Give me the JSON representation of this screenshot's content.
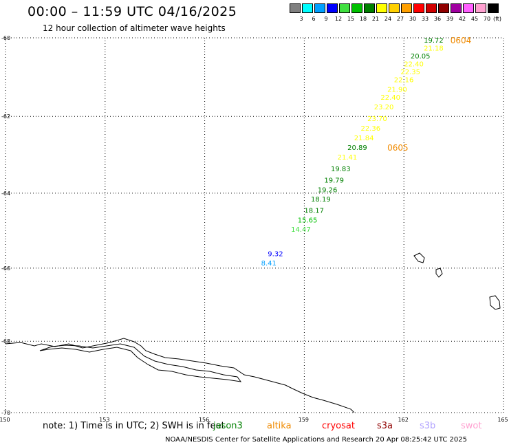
{
  "title": "00:00 – 11:59 UTC 04/16/2025",
  "subtitle": "12 hour collection of altimeter wave heights",
  "legend": {
    "unit": "(ft)",
    "bins": [
      {
        "label": "3",
        "color": "#808080"
      },
      {
        "label": "6",
        "color": "#00ffff"
      },
      {
        "label": "9",
        "color": "#00a0ff"
      },
      {
        "label": "12",
        "color": "#0000ff"
      },
      {
        "label": "15",
        "color": "#40e040"
      },
      {
        "label": "18",
        "color": "#00c000"
      },
      {
        "label": "21",
        "color": "#008000"
      },
      {
        "label": "24",
        "color": "#ffff00"
      },
      {
        "label": "27",
        "color": "#ffd000"
      },
      {
        "label": "30",
        "color": "#ffa000"
      },
      {
        "label": "33",
        "color": "#ff0000"
      },
      {
        "label": "36",
        "color": "#d00000"
      },
      {
        "label": "39",
        "color": "#900000"
      },
      {
        "label": "42",
        "color": "#a000a0"
      },
      {
        "label": "45",
        "color": "#ff60ff"
      },
      {
        "label": "70",
        "color": "#ffa0d0"
      },
      {
        "label": "",
        "color": "#000000"
      }
    ]
  },
  "map": {
    "lon_range": [
      150,
      165
    ],
    "lat_range": [
      -70,
      -60
    ],
    "lon_ticks": [
      {
        "value": 150,
        "label": "150"
      },
      {
        "value": 153,
        "label": "153"
      },
      {
        "value": 156,
        "label": "156"
      },
      {
        "value": 159,
        "label": "159"
      },
      {
        "value": 162,
        "label": "162"
      },
      {
        "value": 165,
        "label": "165"
      }
    ],
    "lat_ticks": [
      {
        "value": -60,
        "label": "-60"
      },
      {
        "value": -62,
        "label": "-62"
      },
      {
        "value": -64,
        "label": "-64"
      },
      {
        "value": -66,
        "label": "-66"
      },
      {
        "value": -68,
        "label": "-68"
      },
      {
        "value": -70,
        "label": "-70"
      }
    ],
    "grid": "dotted",
    "pass_labels": [
      {
        "text": "0604",
        "lon": 163.4,
        "lat": -60.05
      },
      {
        "text": "0605",
        "lon": 161.5,
        "lat": -62.8
      }
    ],
    "observations": [
      {
        "value": "19.72",
        "lon": 162.6,
        "lat": -60.05,
        "color": "#008000"
      },
      {
        "value": "21.18",
        "lon": 162.6,
        "lat": -60.25,
        "color": "#ffff00"
      },
      {
        "value": "20.05",
        "lon": 162.2,
        "lat": -60.45,
        "color": "#008000"
      },
      {
        "value": "22.40",
        "lon": 162.0,
        "lat": -60.65,
        "color": "#ffff00"
      },
      {
        "value": "22.35",
        "lon": 161.9,
        "lat": -60.85,
        "color": "#ffff00"
      },
      {
        "value": "22.16",
        "lon": 161.7,
        "lat": -61.05,
        "color": "#ffff00"
      },
      {
        "value": "21.90",
        "lon": 161.5,
        "lat": -61.3,
        "color": "#ffff00"
      },
      {
        "value": "22.40",
        "lon": 161.3,
        "lat": -61.5,
        "color": "#ffff00"
      },
      {
        "value": "23.20",
        "lon": 161.1,
        "lat": -61.75,
        "color": "#ffff00"
      },
      {
        "value": "23.70",
        "lon": 160.9,
        "lat": -62.05,
        "color": "#ffff00"
      },
      {
        "value": "22.36",
        "lon": 160.7,
        "lat": -62.3,
        "color": "#ffff00"
      },
      {
        "value": "21.84",
        "lon": 160.5,
        "lat": -62.55,
        "color": "#ffff00"
      },
      {
        "value": "20.89",
        "lon": 160.3,
        "lat": -62.8,
        "color": "#008000"
      },
      {
        "value": "21.41",
        "lon": 160.0,
        "lat": -63.05,
        "color": "#ffff00"
      },
      {
        "value": "19.83",
        "lon": 159.8,
        "lat": -63.35,
        "color": "#008000"
      },
      {
        "value": "19.79",
        "lon": 159.6,
        "lat": -63.65,
        "color": "#008000"
      },
      {
        "value": "19.26",
        "lon": 159.4,
        "lat": -63.9,
        "color": "#008000"
      },
      {
        "value": "18.19",
        "lon": 159.2,
        "lat": -64.15,
        "color": "#008000"
      },
      {
        "value": "18.17",
        "lon": 159.0,
        "lat": -64.45,
        "color": "#008000"
      },
      {
        "value": "15.65",
        "lon": 158.8,
        "lat": -64.7,
        "color": "#00c000"
      },
      {
        "value": "14.47",
        "lon": 158.6,
        "lat": -64.95,
        "color": "#40e040"
      },
      {
        "value": "9.32",
        "lon": 157.9,
        "lat": -65.6,
        "color": "#0000ff"
      },
      {
        "value": "8.41",
        "lon": 157.7,
        "lat": -65.85,
        "color": "#00a0ff"
      }
    ]
  },
  "note": "note: 1) Time is in UTC; 2) SWH is in feet",
  "satellites": [
    {
      "name": "jason3",
      "color": "#008000"
    },
    {
      "name": "altika",
      "color": "#f08a00"
    },
    {
      "name": "cryosat",
      "color": "#ff0000"
    },
    {
      "name": "s3a",
      "color": "#900000"
    },
    {
      "name": "s3b",
      "color": "#b0a0ff"
    },
    {
      "name": "swot",
      "color": "#ffa0d0"
    }
  ],
  "credits": "NOAA/NESDIS Center for Satellite Applications and Research    20 Apr 08:25:42 UTC 2025"
}
